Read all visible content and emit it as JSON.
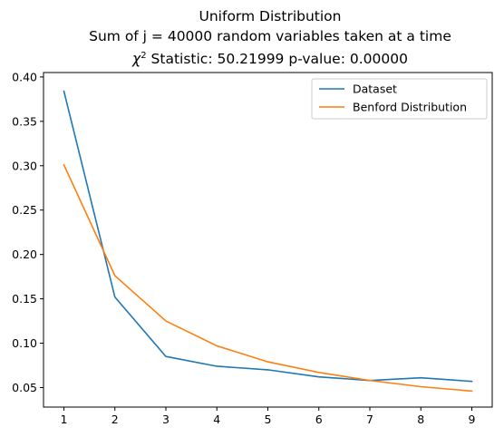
{
  "chart_data": {
    "type": "line",
    "title_lines": [
      "Uniform Distribution",
      "Sum of j = 40000 random variables taken at a time"
    ],
    "stat_line": {
      "chi_symbol": "χ",
      "chi_exponent": "2",
      "text": " Statistic: 50.21999 p-value: 0.00000"
    },
    "xlabel": "",
    "ylabel": "",
    "x": [
      1,
      2,
      3,
      4,
      5,
      6,
      7,
      8,
      9
    ],
    "xlim": [
      0.6,
      9.4
    ],
    "ylim": [
      0.028,
      0.405
    ],
    "x_ticks": [
      1,
      2,
      3,
      4,
      5,
      6,
      7,
      8,
      9
    ],
    "y_ticks": [
      0.05,
      0.1,
      0.15,
      0.2,
      0.25,
      0.3,
      0.35,
      0.4
    ],
    "grid": false,
    "legend_position": "top-right",
    "series": [
      {
        "name": "Dataset",
        "color": "#1f77b4",
        "values": [
          0.384,
          0.152,
          0.085,
          0.074,
          0.07,
          0.062,
          0.058,
          0.061,
          0.057
        ]
      },
      {
        "name": "Benford Distribution",
        "color": "#ff7f0e",
        "values": [
          0.301,
          0.176,
          0.125,
          0.097,
          0.079,
          0.067,
          0.058,
          0.051,
          0.046
        ]
      }
    ]
  }
}
